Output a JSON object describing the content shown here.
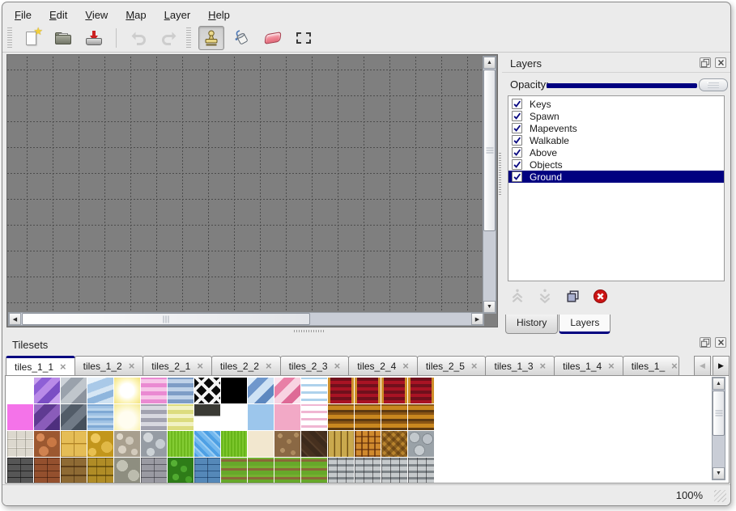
{
  "menu": {
    "items": [
      {
        "label": "File"
      },
      {
        "label": "Edit"
      },
      {
        "label": "View"
      },
      {
        "label": "Map"
      },
      {
        "label": "Layer"
      },
      {
        "label": "Help"
      }
    ]
  },
  "toolbar": {
    "buttons": [
      {
        "type": "handle"
      },
      {
        "name": "new-file",
        "icon": "new-file-icon"
      },
      {
        "name": "open-file",
        "icon": "open-file-icon"
      },
      {
        "name": "save-file",
        "icon": "save-file-icon"
      },
      {
        "type": "separator"
      },
      {
        "name": "undo",
        "icon": "undo-icon",
        "disabled": true
      },
      {
        "name": "redo",
        "icon": "redo-icon",
        "disabled": true
      },
      {
        "type": "handle"
      },
      {
        "name": "stamp-tool",
        "icon": "stamp-tool-icon",
        "active": true
      },
      {
        "name": "fill-tool",
        "icon": "fill-tool-icon"
      },
      {
        "name": "eraser-tool",
        "icon": "eraser-tool-icon"
      },
      {
        "name": "select-tool",
        "icon": "select-tool-icon"
      }
    ]
  },
  "layers_panel": {
    "title": "Layers",
    "opacity_label": "Opacity:",
    "opacity_percent": 100,
    "window_buttons": [
      "float-icon",
      "close-icon"
    ],
    "layers": [
      {
        "name": "Keys",
        "checked": true
      },
      {
        "name": "Spawn",
        "checked": true
      },
      {
        "name": "Mapevents",
        "checked": true
      },
      {
        "name": "Walkable",
        "checked": true
      },
      {
        "name": "Above",
        "checked": true
      },
      {
        "name": "Objects",
        "checked": true
      },
      {
        "name": "Ground",
        "checked": true,
        "selected": true
      }
    ],
    "actions": [
      {
        "name": "raise-layer",
        "icon": "raise-layer-icon",
        "disabled": true
      },
      {
        "name": "lower-layer",
        "icon": "lower-layer-icon",
        "disabled": true
      },
      {
        "name": "duplicate-layer",
        "icon": "duplicate-layer-icon"
      },
      {
        "name": "delete-layer",
        "icon": "delete-layer-icon"
      }
    ],
    "tabs": [
      {
        "label": "History"
      },
      {
        "label": "Layers",
        "active": true
      }
    ]
  },
  "tilesets_panel": {
    "title": "Tilesets",
    "window_buttons": [
      "float-icon",
      "close-icon"
    ],
    "tabs": [
      {
        "label": "tiles_1_1",
        "active": true
      },
      {
        "label": "tiles_1_2"
      },
      {
        "label": "tiles_2_1"
      },
      {
        "label": "tiles_2_2"
      },
      {
        "label": "tiles_2_3"
      },
      {
        "label": "tiles_2_4"
      },
      {
        "label": "tiles_2_5"
      },
      {
        "label": "tiles_1_3"
      },
      {
        "label": "tiles_1_4"
      },
      {
        "label": "tiles_1_",
        "truncated": true
      }
    ],
    "tab_scroll_icons": [
      "scroll-tabs-left-icon",
      "scroll-tabs-right-icon"
    ],
    "grid": [
      [
        "empty",
        "glass_purple",
        "glass_gray",
        "water_glass",
        "glow_yellow",
        "stripes_pink",
        "stripes_blue",
        "lattice",
        "black",
        "glass_blue",
        "glass_pink",
        "wavy_blue",
        "carpet_red",
        "carpet_red",
        "carpet_red",
        "carpet_red"
      ],
      [
        "magenta",
        "glass_purple_dark",
        "glass_gray_dark",
        "water_dark",
        "pale_yellow",
        "stripes_gray",
        "stripes_yellow",
        "metal_strip",
        "empty",
        "light_blue",
        "light_pink",
        "wavy_pink",
        "stripes_brown",
        "stripes_brown",
        "stripes_brown",
        "stripes_brown"
      ],
      [
        "stone_path",
        "cobble_orange",
        "tile_yellow",
        "stone_yellow",
        "pebbles_gray",
        "stones_gray",
        "grass_green",
        "water_tex",
        "grass_bright",
        "sand_pale",
        "dirt_pebbles",
        "shingles_dark",
        "planks_wood",
        "basket_weave",
        "herringbone",
        "logs_gray"
      ],
      [
        "brick_dark",
        "brick_redbrown",
        "brick_brown",
        "stonewall_yellow",
        "stonewall_gray",
        "brick_gray",
        "hedge_green",
        "brick_blue",
        "grass_path",
        "grass_path",
        "grass_path",
        "grass_path",
        "brickwall_gray",
        "brickwall_gray",
        "brickwall_gray",
        "brickwall_gray"
      ]
    ],
    "tile_styles": {
      "empty": "#ffffff",
      "glass_purple": "linear-gradient(135deg,#c9a2ee 0 15%,#8e5fd6 15% 35%,#b98ae8 35% 55%,#7b4ec4 55% 78%,#c9a2ee 78% 100%)",
      "glass_gray": "linear-gradient(135deg,#cdd2d8 0 20%,#9aa2ac 20% 45%,#c0c6cc 45% 70%,#8d949e 70% 100%)",
      "water_glass": "linear-gradient(160deg,#e8f2fa 0 20%,#a9c9e8 20% 45%,#d6e6f4 45% 60%,#8fb6dd 60% 80%,#cfe2f2 80% 100%)",
      "glow_yellow": "radial-gradient(circle at 50% 50%,#ffffff 0 38%,#fdf6c0 62%,#f3e27c 100%)",
      "stripes_pink": "repeating-linear-gradient(0deg,#ea8ad2 0 5px,#f6c6e8 5px 10px)",
      "stripes_blue": "repeating-linear-gradient(0deg,#7e9dc6 0 5px,#bfd2e8 5px 10px)",
      "lattice": "repeating-linear-gradient(45deg,rgba(0,0,0,0) 0 9px,#f4f4f4 9px 13px),repeating-linear-gradient(135deg,#0a0a0a 0 9px,#f4f4f4 9px 13px)",
      "black": "#000000",
      "glass_blue": "linear-gradient(135deg,#dcebf8 0 18%,#6f97cc 18% 40%,#cfe2f4 40% 62%,#5d88c0 62% 84%,#dcebf8 84% 100%)",
      "glass_pink": "linear-gradient(135deg,#fbe4ee 0 18%,#e87fa6 18% 40%,#f8d3e2 40% 62%,#de6a96 62% 84%,#fbe4ee 84% 100%)",
      "wavy_blue": "repeating-linear-gradient(0deg,#ffffff 0 3px,#aed2ec 3px 6px,#ffffff 6px 9px)",
      "carpet_red": "linear-gradient(90deg,#cf8f2a 0 3px,rgba(0,0,0,0) 3px 29px,#cf8f2a 29px 100%),repeating-linear-gradient(0deg,#a91324 0 4px,#70101c 4px 8px)",
      "magenta": "#f473e9",
      "glass_purple_dark": "linear-gradient(135deg,#9a6cc8 0 20%,#5f3a92 20% 45%,#8a5cba 45% 70%,#4e2f7e 70% 100%)",
      "glass_gray_dark": "linear-gradient(135deg,#7e8894 0 20%,#525c68 20% 45%,#707a86 45% 70%,#46505c 70% 100%)",
      "water_dark": "repeating-linear-gradient(0deg,#9fc2e4 0 3px,#7fa9d4 3px 6px,#b9d4ec 6px 9px)",
      "pale_yellow": "radial-gradient(circle at 50% 60%,#fffdf0 0 40%,#faf3b8 75%,#f3e894 100%)",
      "stripes_gray": "repeating-linear-gradient(0deg,#a2a2b0 0 5px,#d8d8e0 5px 10px)",
      "stripes_yellow": "repeating-linear-gradient(0deg,#dcdc7e 0 5px,#f2f2c4 5px 10px)",
      "metal_strip": "linear-gradient(180deg,#3a3a34 0 45%,#ffffff 45% 100%)",
      "light_blue": "#9cc6ec",
      "light_pink": "#f2a9c6",
      "wavy_pink": "repeating-linear-gradient(0deg,#ffffff 0 3px,#f0b6d2 3px 6px,#ffffff 6px 9px)",
      "stripes_brown": "repeating-linear-gradient(0deg,#5e3a10 0 3px,#c9871f 3px 8px,#8a5514 8px 11px)",
      "stone_path": "repeating-linear-gradient(90deg,rgba(120,118,108,.45) 0 1px,rgba(0,0,0,0) 1px 11px),repeating-linear-gradient(0deg,#ece8e0 0 1px,#dcd8ce 1px 10px,#b8b4a8 10px 11px)",
      "cobble_orange": "radial-gradient(circle at 8px 8px,#d98a58 0 5px,rgba(0,0,0,0) 5px),radial-gradient(circle at 22px 14px,#c97844 0 6px,rgba(0,0,0,0) 6px),radial-gradient(circle at 12px 25px,#d08250 0 6px,rgba(0,0,0,0) 6px),#9c5830",
      "tile_yellow": "repeating-linear-gradient(90deg,#b08428 0 1px,rgba(0,0,0,0) 1px 16px),repeating-linear-gradient(0deg,#b08428 0 1px,#e5bd56 1px 15px,#d6a93e 15px 16px)",
      "stone_yellow": "radial-gradient(circle at 10px 9px,#eec85c 0 6px,rgba(0,0,0,0) 6px),radial-gradient(circle at 24px 20px,#e0b846 0 7px,rgba(0,0,0,0) 7px),radial-gradient(circle at 6px 26px,#e8c050 0 5px,rgba(0,0,0,0) 5px),#c2961c",
      "pebbles_gray": "radial-gradient(circle at 7px 7px,#ddd6c8 0 4px,rgba(0,0,0,0) 4px),radial-gradient(circle at 19px 12px,#cfc8ba 0 5px,rgba(0,0,0,0) 5px),radial-gradient(circle at 10px 23px,#d8d0c2 0 5px,rgba(0,0,0,0) 5px),radial-gradient(circle at 25px 26px,#d2cabc 0 4px,rgba(0,0,0,0) 4px),#a89f8e",
      "stones_gray": "radial-gradient(circle at 9px 8px,#d2d6da 0 6px,rgba(0,0,0,0) 6px),radial-gradient(circle at 24px 16px,#c6ccd2 0 6px,rgba(0,0,0,0) 6px),radial-gradient(circle at 12px 26px,#ccd2d6 0 5px,rgba(0,0,0,0) 5px),#969ca4",
      "grass_green": "repeating-linear-gradient(90deg,#6eb81e 0 2px,#84cc34 2px 4px)",
      "water_tex": "repeating-linear-gradient(45deg,#4ea0e4 0 4px,#73b8ee 4px 8px,#9ccef4 8px 10px)",
      "grass_bright": "repeating-linear-gradient(90deg,#66b418 0 2px,#7cc62c 2px 4px)",
      "sand_pale": "#f2e7cf",
      "dirt_pebbles": "radial-gradient(circle at 7px 6px,#b79468 0 3px,rgba(0,0,0,0) 3px),radial-gradient(circle at 18px 13px,#ab885c 0 3px,rgba(0,0,0,0) 3px),radial-gradient(circle at 27px 5px,#b08d60 0 3px,rgba(0,0,0,0) 3px),radial-gradient(circle at 10px 24px,#b29066 0 3px,rgba(0,0,0,0) 3px),radial-gradient(circle at 23px 27px,#ad8a5e 0 3px,rgba(0,0,0,0) 3px),#8a6844",
      "shingles_dark": "repeating-linear-gradient(45deg,#3c2a1c 0 6px,#543c28 6px 8px,#46301f 8px 14px)",
      "planks_wood": "repeating-linear-gradient(90deg,#6b5018 0 1px,#c9a94e 1px 7px,#a9832c 7px 8px)",
      "basket_weave": "repeating-linear-gradient(0deg,rgba(90,40,10,.55) 0 2px,rgba(0,0,0,0) 2px 8px),repeating-linear-gradient(90deg,#7e4612 0 2px,#d08a2e 2px 8px)",
      "herringbone": "repeating-linear-gradient(135deg,rgba(60,35,5,.35) 0 4px,rgba(0,0,0,0) 4px 8px),repeating-linear-gradient(45deg,#8a5c1e 0 4px,#b8842e 4px 8px)",
      "logs_gray": "radial-gradient(circle at 8px 8px,#c2c8cc 0 6px,#858c92 6px 7px,rgba(0,0,0,0) 7px),radial-gradient(circle at 24px 10px,#bcc2c8 0 6px,#828990 6px 7px,rgba(0,0,0,0) 7px),radial-gradient(circle at 14px 24px,#c6ccd0 0 6px,#878e94 6px 7px,rgba(0,0,0,0) 7px),#9aa2a8",
      "brick_dark": "repeating-linear-gradient(90deg,rgba(20,20,20,.6) 0 1px,rgba(0,0,0,0) 1px 16px),repeating-linear-gradient(0deg,#565656 0 7px,#232323 7px 8px)",
      "brick_redbrown": "repeating-linear-gradient(90deg,rgba(40,15,5,.5) 0 1px,rgba(0,0,0,0) 1px 16px),repeating-linear-gradient(0deg,#94502e 0 7px,#5e2e16 7px 8px)",
      "brick_brown": "repeating-linear-gradient(90deg,rgba(50,30,5,.5) 0 1px,rgba(0,0,0,0) 1px 16px),repeating-linear-gradient(0deg,#8e6a34 0 9px,#5c3e1a 9px 11px)",
      "stonewall_yellow": "repeating-linear-gradient(90deg,rgba(70,50,0,.5) 0 1px,rgba(0,0,0,0) 1px 11px),repeating-linear-gradient(0deg,#b08c26 0 9px,#715812 9px 11px)",
      "stonewall_gray": "radial-gradient(circle at 10px 10px,#c2c2b4 0 7px,rgba(0,0,0,0) 7px),radial-gradient(circle at 24px 22px,#bcbcae 0 7px,rgba(0,0,0,0) 7px),#8e8e80",
      "brick_gray": "repeating-linear-gradient(90deg,rgba(40,40,45,.5) 0 1px,rgba(0,0,0,0) 1px 16px),repeating-linear-gradient(0deg,#9a9aa2 0 7px,#5a5a62 7px 8px)",
      "hedge_green": "radial-gradient(circle at 8px 7px,#56b034 0 4px,rgba(0,0,0,0) 4px),radial-gradient(circle at 20px 14px,#4aa42c 0 4px,rgba(0,0,0,0) 4px),radial-gradient(circle at 10px 24px,#50aa30 0 4px,rgba(0,0,0,0) 4px),radial-gradient(circle at 26px 27px,#46a028 0 4px,rgba(0,0,0,0) 4px),#2e7c18",
      "brick_blue": "repeating-linear-gradient(90deg,rgba(10,30,60,.5) 0 1px,rgba(0,0,0,0) 1px 16px),repeating-linear-gradient(0deg,#5588b8 0 7px,#2a5684 7px 8px)",
      "grass_path": "repeating-linear-gradient(0deg,#67a82a 0 5px,#8a6838 5px 8px,#74b030 8px 11px)",
      "brickwall_gray": "repeating-linear-gradient(90deg,rgba(30,30,35,.55) 0 1px,rgba(0,0,0,0) 1px 11px),repeating-linear-gradient(0deg,#c6cacc 0 5px,#7e8488 5px 8px)"
    }
  },
  "status_bar": {
    "zoom_level": "100%"
  },
  "colors": {
    "selection_navy": "#000080",
    "slider_fill": "#000080",
    "canvas_background": "#7f7f7f",
    "grid_line": "#4c4c4c",
    "chrome_background": "#ebebeb",
    "eraser_pink": "#ef8492",
    "save_arrow_red": "#cc2020",
    "new_file_star_yellow": "#f2cf3a"
  }
}
